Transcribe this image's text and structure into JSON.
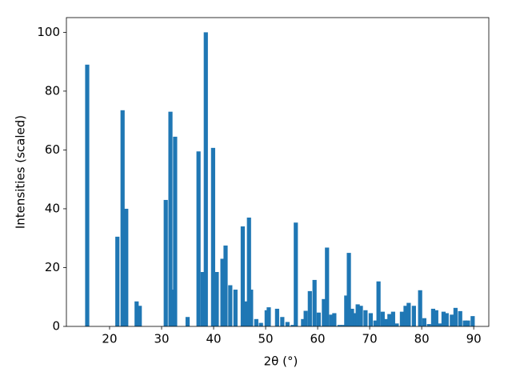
{
  "chart_data": {
    "type": "bar",
    "xlabel": "2θ (°)",
    "ylabel": "Intensities (scaled)",
    "color": "#1f77b4",
    "x": [
      15.7,
      21.5,
      22.5,
      23.2,
      25.2,
      25.8,
      30.8,
      31.7,
      32.2,
      32.6,
      35.0,
      37.1,
      37.9,
      38.5,
      39.9,
      40.6,
      41.7,
      42.3,
      43.2,
      44.2,
      45.6,
      46.2,
      46.8,
      47.2,
      48.2,
      49.1,
      50.2,
      50.6,
      52.2,
      53.2,
      54.2,
      55.2,
      55.8,
      57.2,
      57.7,
      58.5,
      59.4,
      60.2,
      61.2,
      61.8,
      62.6,
      63.2,
      64.2,
      64.9,
      65.5,
      66.0,
      66.6,
      67.2,
      67.7,
      68.3,
      69.2,
      70.2,
      71.1,
      71.7,
      72.5,
      73.1,
      73.8,
      74.5,
      75.2,
      76.2,
      76.9,
      77.5,
      78.5,
      79.7,
      80.5,
      81.4,
      82.2,
      82.8,
      83.5,
      84.2,
      84.8,
      85.8,
      86.5,
      87.4,
      88.3,
      88.9,
      89.8
    ],
    "values": [
      89,
      30.5,
      73.5,
      40,
      8.5,
      7,
      43,
      73,
      12.5,
      64.5,
      3.2,
      59.5,
      18.5,
      100,
      60.7,
      18.5,
      23,
      27.5,
      14,
      12.5,
      34,
      8.5,
      37,
      12.5,
      2.5,
      1.2,
      5.5,
      6.5,
      6,
      3.2,
      1.5,
      0.5,
      35.3,
      2.5,
      5.3,
      12,
      15.8,
      4.7,
      9.3,
      26.8,
      4,
      4.5,
      0.5,
      0.5,
      10.5,
      25,
      6,
      4.5,
      7.5,
      7,
      5.5,
      4.5,
      2,
      15.3,
      5,
      2.5,
      4.2,
      5,
      1,
      5,
      7,
      8,
      7,
      12.3,
      2.8,
      0.8,
      6,
      5.5,
      1,
      5,
      4.5,
      4,
      6.3,
      5.2,
      2,
      2,
      3.5
    ],
    "xlim": [
      11.7,
      92.9
    ],
    "xticks": [
      20,
      30,
      40,
      50,
      60,
      70,
      80,
      90
    ],
    "ylim": [
      0,
      105
    ],
    "yticks": [
      0,
      20,
      40,
      60,
      80,
      100
    ]
  }
}
